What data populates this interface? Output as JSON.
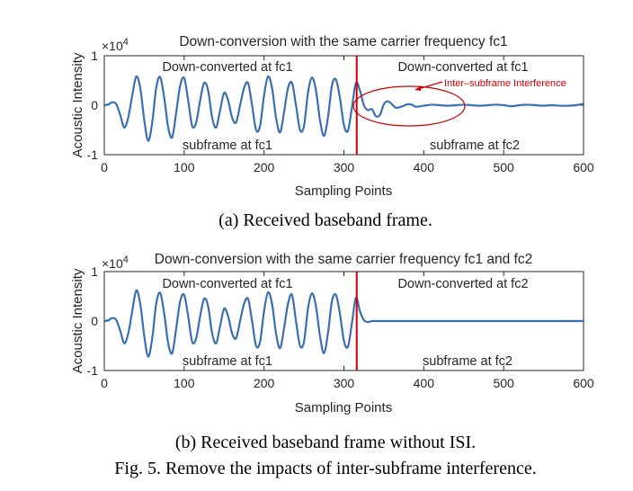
{
  "chart_data": [
    {
      "type": "line",
      "title": "Down-conversion with the same carrier frequency fc1",
      "xlabel": "Sampling Points",
      "ylabel": "Acoustic Intensity",
      "y_multiplier": "×10",
      "y_multiplier_exp": "4",
      "xlim": [
        0,
        600
      ],
      "ylim": [
        -10000,
        10000
      ],
      "x_ticks": [
        "0",
        "100",
        "200",
        "300",
        "400",
        "500",
        "600"
      ],
      "y_ticks": [
        "-1",
        "0",
        "1"
      ],
      "grid": false,
      "divider_x": 316,
      "annotations": {
        "left_top": "Down-converted at fc1",
        "right_top": "Down-converted at fc1",
        "left_bottom": "subframe at fc1",
        "right_bottom": "subframe at fc2",
        "interference": "Inter–subframe Interference"
      },
      "series": [
        {
          "x": [
            0,
            5,
            10,
            15,
            20,
            25,
            30,
            35,
            40,
            45,
            50,
            55,
            60,
            65,
            70,
            75,
            80,
            85,
            90,
            95,
            100,
            105,
            110,
            115,
            120,
            125,
            130,
            135,
            140,
            145,
            150,
            155,
            160,
            165,
            170,
            175,
            180,
            185,
            190,
            195,
            200,
            205,
            210,
            215,
            220,
            225,
            230,
            235,
            240,
            245,
            250,
            255,
            260,
            265,
            270,
            275,
            280,
            285,
            290,
            295,
            300,
            305,
            310,
            315,
            320,
            325,
            330,
            335,
            340,
            345,
            350,
            355,
            360,
            365,
            370,
            375,
            380,
            385,
            390,
            400,
            410,
            420,
            430,
            440,
            450,
            460,
            470,
            480,
            490,
            500,
            510,
            520,
            530,
            540,
            550,
            560,
            570,
            580,
            590,
            600
          ],
          "values": [
            0,
            150,
            600,
            200,
            -2000,
            -4500,
            -2500,
            2000,
            5800,
            3500,
            -3000,
            -7200,
            -3500,
            3500,
            5700,
            1500,
            -4500,
            -6500,
            -1500,
            4000,
            5500,
            1000,
            -4200,
            -3500,
            1000,
            4500,
            3000,
            -2500,
            -4500,
            -1000,
            2500,
            1000,
            -2500,
            -3500,
            0,
            3500,
            4500,
            0,
            -5000,
            -4200,
            2000,
            5800,
            3500,
            -2500,
            -5500,
            -1500,
            3500,
            4500,
            0,
            -5000,
            -4200,
            2500,
            5600,
            3000,
            -3000,
            -6200,
            -2500,
            4000,
            5200,
            1500,
            -4000,
            -5200,
            -500,
            4500,
            3000,
            0,
            -1000,
            -800,
            -2200,
            -2000,
            200,
            800,
            200,
            -500,
            -400,
            -100,
            200,
            100,
            -300,
            -100,
            100,
            0,
            -100,
            0,
            100,
            0,
            -100,
            0,
            100,
            0,
            -200,
            0,
            100,
            0,
            -100,
            0,
            -100,
            -100,
            0,
            300
          ]
        }
      ]
    },
    {
      "type": "line",
      "title": "Down-conversion with the same carrier frequency fc1 and fc2",
      "xlabel": "Sampling Points",
      "ylabel": "Acoustic Intensity",
      "y_multiplier": "×10",
      "y_multiplier_exp": "4",
      "xlim": [
        0,
        600
      ],
      "ylim": [
        -10000,
        10000
      ],
      "x_ticks": [
        "0",
        "100",
        "200",
        "300",
        "400",
        "500",
        "600"
      ],
      "y_ticks": [
        "-1",
        "0",
        "1"
      ],
      "grid": false,
      "divider_x": 316,
      "annotations": {
        "left_top": "Down-converted at fc1",
        "right_top": "Down-converted at fc2",
        "left_bottom": "subframe at fc1",
        "right_bottom": "subframe at fc2"
      },
      "series": [
        {
          "x": [
            0,
            5,
            10,
            15,
            20,
            25,
            30,
            35,
            40,
            45,
            50,
            55,
            60,
            65,
            70,
            75,
            80,
            85,
            90,
            95,
            100,
            105,
            110,
            115,
            120,
            125,
            130,
            135,
            140,
            145,
            150,
            155,
            160,
            165,
            170,
            175,
            180,
            185,
            190,
            195,
            200,
            205,
            210,
            215,
            220,
            225,
            230,
            235,
            240,
            245,
            250,
            255,
            260,
            265,
            270,
            275,
            280,
            285,
            290,
            295,
            300,
            305,
            310,
            315,
            320,
            325,
            330,
            335,
            340,
            350,
            400,
            450,
            500,
            550,
            600
          ],
          "values": [
            0,
            150,
            600,
            200,
            -2000,
            -4500,
            -2500,
            2000,
            6200,
            3500,
            -3000,
            -7200,
            -3500,
            3500,
            5700,
            1500,
            -4500,
            -6500,
            -1500,
            4000,
            5300,
            1000,
            -4200,
            -3500,
            1000,
            4500,
            3000,
            -2500,
            -4500,
            -1000,
            2500,
            1000,
            -2500,
            -3500,
            0,
            3500,
            4500,
            0,
            -5000,
            -4200,
            2000,
            5800,
            3500,
            -2500,
            -5500,
            -1500,
            3500,
            5300,
            0,
            -5000,
            -4200,
            2500,
            5600,
            3000,
            -3000,
            -6500,
            -2500,
            4000,
            5300,
            1500,
            -4000,
            -5200,
            -500,
            4700,
            2000,
            200,
            -200,
            0,
            0,
            0,
            0,
            0,
            0,
            0,
            0
          ]
        }
      ]
    }
  ],
  "captions": {
    "a": "(a)  Received baseband frame.",
    "b": "(b)  Received baseband frame without ISI.",
    "fig": "Fig. 5.   Remove the impacts of inter-subframe interference."
  },
  "colors": {
    "line": "#3a6fb5",
    "divider": "#cc0000",
    "annotation": "#cc0000"
  }
}
